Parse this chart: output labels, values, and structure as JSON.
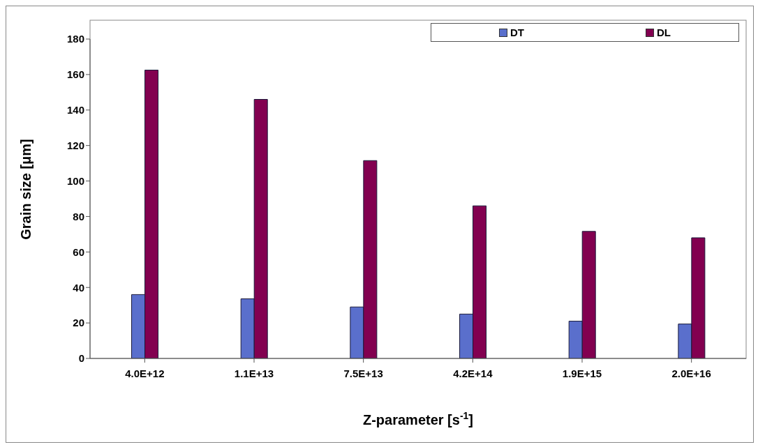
{
  "chart_data": {
    "type": "bar",
    "xlabel": "Z-parameter [s$^{-1}$]",
    "ylabel": "Grain size [μm]",
    "categories": [
      "4.0E+12",
      "1.1E+13",
      "7.5E+13",
      "4.2E+14",
      "1.9E+15",
      "2.0E+16"
    ],
    "series": [
      {
        "name": "DT",
        "color": "#5a6fcc",
        "values": [
          36,
          33.6,
          29,
          25,
          21,
          19.4
        ]
      },
      {
        "name": "DL",
        "color": "#820050",
        "values": [
          162.5,
          146,
          111.5,
          86,
          71.6,
          68
        ]
      }
    ],
    "ylim": [
      0,
      180
    ],
    "yticks": [
      0,
      20,
      40,
      60,
      80,
      100,
      120,
      140,
      160,
      180
    ],
    "grid": false,
    "legend": "top right"
  }
}
